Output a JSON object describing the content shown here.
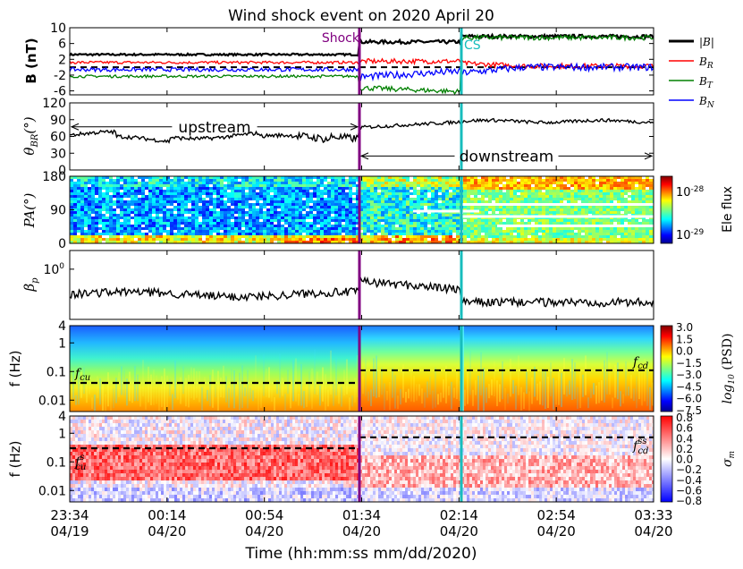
{
  "chart_data": {
    "type": "line",
    "title": "Wind shock event on 2020 April 20",
    "xlabel": "Time (hh:mm:ss mm/dd/2020)",
    "x_ticks": [
      {
        "time": "23:34",
        "date": "04/19"
      },
      {
        "time": "00:14",
        "date": "04/20"
      },
      {
        "time": "00:54",
        "date": "04/20"
      },
      {
        "time": "01:34",
        "date": "04/20"
      },
      {
        "time": "02:14",
        "date": "04/20"
      },
      {
        "time": "02:54",
        "date": "04/20"
      },
      {
        "time": "03:33",
        "date": "04/20"
      }
    ],
    "events": [
      {
        "label": "Shock",
        "time": "01:34",
        "color": "#800080"
      },
      {
        "label": "CS",
        "time": "02:14",
        "color": "#17bdbd"
      }
    ],
    "panels": [
      {
        "id": "b",
        "ylabel": "B (nT)",
        "ylim": [
          -7,
          10
        ],
        "yticks": [
          "10",
          "6",
          "2",
          "-2",
          "-6"
        ],
        "yticks_values": [
          10,
          6,
          2,
          -2,
          -6
        ],
        "legend": [
          {
            "name": "|B|",
            "color": "#000000"
          },
          {
            "name": "B_R",
            "color": "#ff0000"
          },
          {
            "name": "B_T",
            "color": "#008000"
          },
          {
            "name": "B_N",
            "color": "#0000ff"
          }
        ],
        "series": [
          {
            "name": "|B|",
            "color": "#000000",
            "before": 3.2,
            "after_shock": 6.4,
            "after_cs": 7.8
          },
          {
            "name": "B_R",
            "color": "#ff0000",
            "before": 1.2,
            "after_shock": 1.5,
            "after_cs": 0.3
          },
          {
            "name": "B_T",
            "color": "#008000",
            "before": -2.3,
            "after_shock": -5.2,
            "after_cs": 7.5
          },
          {
            "name": "B_N",
            "color": "#0000ff",
            "before": -0.6,
            "after_shock": -2.5,
            "after_cs": 0.0
          }
        ],
        "reference_line": 0
      },
      {
        "id": "theta",
        "ylabel": "θ_BR(°)",
        "ylim": [
          0,
          120
        ],
        "yticks": [
          "120",
          "90",
          "60",
          "30",
          "0"
        ],
        "yticks_values": [
          120,
          90,
          60,
          30,
          0
        ],
        "series": [
          {
            "color": "#000000",
            "before": 62,
            "after_shock": 80,
            "after_cs": 87
          }
        ],
        "annotations": [
          {
            "text": "upstream",
            "y": 90,
            "from": "start",
            "to": "shock"
          },
          {
            "text": "downstream",
            "y": 25,
            "from": "shock",
            "to": "end"
          }
        ]
      },
      {
        "id": "pa",
        "ylabel": "PA(°)",
        "ylim": [
          0,
          180
        ],
        "yticks": [
          "180",
          "90",
          "0"
        ],
        "yticks_values": [
          180,
          90,
          0
        ],
        "colorbar": {
          "label": "Ele flux",
          "ticks": [
            "10-28",
            "10-29"
          ]
        }
      },
      {
        "id": "beta",
        "ylabel": "β_p",
        "ytick_label": "10",
        "ytick_exponent": "0",
        "series": [
          {
            "color": "#000000",
            "before": 0.35,
            "after_shock": 0.6,
            "after_cs": 0.25
          }
        ]
      },
      {
        "id": "psd",
        "ylabel": "f (Hz)",
        "yticks": [
          "4",
          "1",
          "0.1",
          "0.01"
        ],
        "yticks_values": [
          4,
          1,
          0.1,
          0.01
        ],
        "colorbar": {
          "label": "log10 (PSD)",
          "ticks": [
            "3.0",
            "1.5",
            "0.0",
            "−1.5",
            "−3.0",
            "−4.5",
            "−6.0",
            "−7.5"
          ],
          "range": [
            -7.5,
            3.0
          ]
        },
        "lines": [
          {
            "label": "f_cu",
            "y": 0.04,
            "segment": "upstream"
          },
          {
            "label": "f_cd",
            "y": 0.11,
            "segment": "downstream"
          }
        ]
      },
      {
        "id": "sigma",
        "ylabel": "f (Hz)",
        "yticks": [
          "4",
          "1",
          "0.1",
          "0.01"
        ],
        "yticks_values": [
          4,
          1,
          0.1,
          0.01
        ],
        "colorbar": {
          "label": "σ_m",
          "ticks": [
            "0.8",
            "0.6",
            "0.4",
            "0.2",
            "0.0",
            "−0.2",
            "−0.4",
            "−0.6",
            "−0.8"
          ],
          "range": [
            -0.8,
            0.8
          ]
        },
        "lines": [
          {
            "label": "f_cu^s",
            "y": 0.3,
            "segment": "upstream"
          },
          {
            "label": "f_cd^ss",
            "y": 0.72,
            "segment": "downstream"
          }
        ]
      }
    ]
  }
}
